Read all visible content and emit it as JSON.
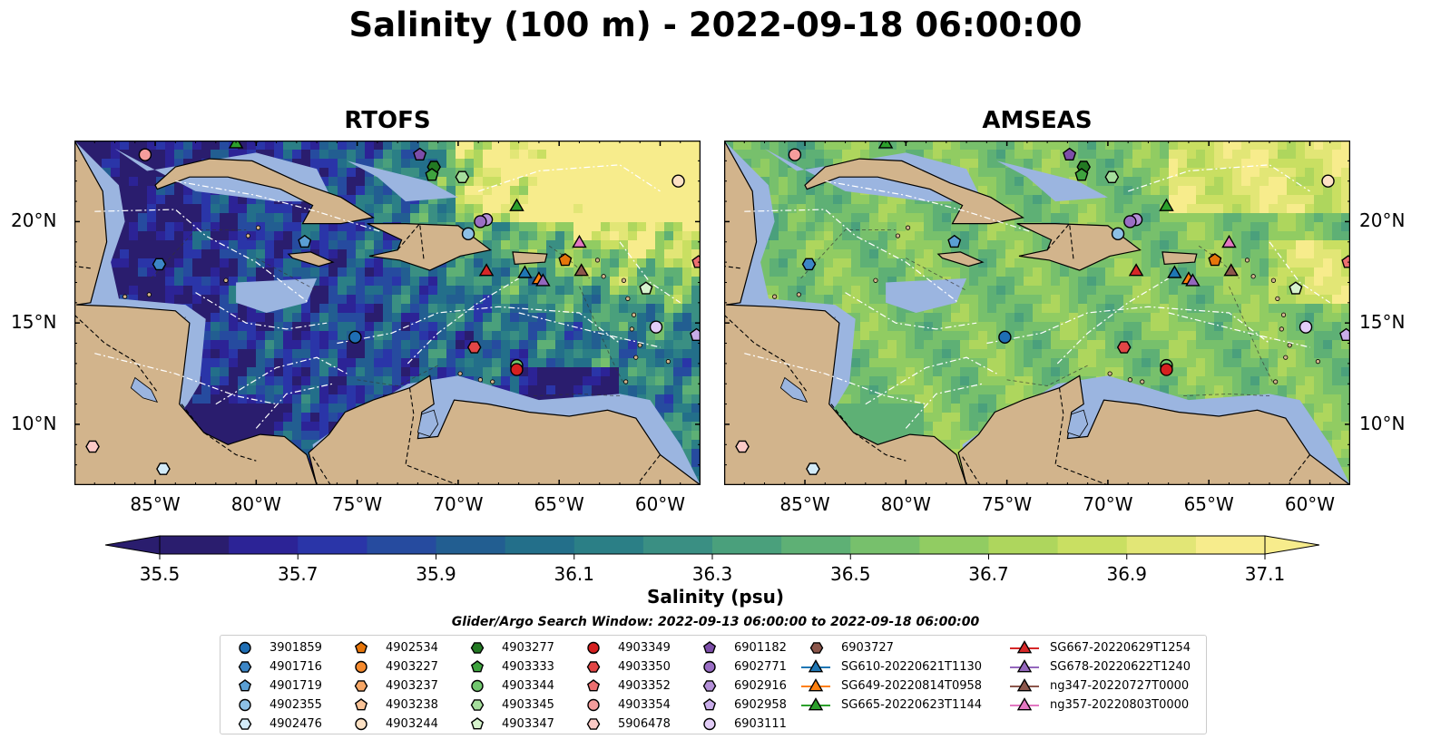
{
  "title": "Salinity (100 m) - 2022-09-18 06:00:00",
  "panels": [
    {
      "title": "RTOFS",
      "model": "rtofs"
    },
    {
      "title": "AMSEAS",
      "model": "amseas"
    }
  ],
  "lon_ticks": [
    "85°W",
    "80°W",
    "75°W",
    "70°W",
    "65°W",
    "60°W"
  ],
  "lat_ticks": [
    "20°N",
    "15°N",
    "10°N"
  ],
  "colorbar": {
    "label": "Salinity (psu)",
    "min": 35.5,
    "max": 37.1,
    "step": 0.1,
    "tick_labels": [
      "35.5",
      "35.7",
      "35.9",
      "36.1",
      "36.3",
      "36.5",
      "36.7",
      "36.9",
      "37.1"
    ],
    "colors": [
      "#2a1d6e",
      "#2c2396",
      "#2a35a8",
      "#264b9f",
      "#225e91",
      "#236f8a",
      "#2b7f86",
      "#3a8f83",
      "#4aa07c",
      "#5eb075",
      "#77c06c",
      "#91cc62",
      "#aed65d",
      "#c9df62",
      "#e2e676",
      "#f7ec8c"
    ],
    "extend": "both"
  },
  "legend": {
    "title": "Glider/Argo Search Window: 2022-09-13 06:00:00 to 2022-09-18 06:00:00",
    "columns": [
      [
        {
          "label": "3901859",
          "marker": "circle",
          "color": "#1f6eb4"
        },
        {
          "label": "4901716",
          "marker": "hexagon",
          "color": "#3c86c6"
        },
        {
          "label": "4901719",
          "marker": "pentagon",
          "color": "#5a9fd4"
        },
        {
          "label": "4902355",
          "marker": "circle",
          "color": "#8dc0e6"
        },
        {
          "label": "4902476",
          "marker": "hexagon",
          "color": "#d3ebf8"
        }
      ],
      [
        {
          "label": "4902534",
          "marker": "pentagon",
          "color": "#e6750a"
        },
        {
          "label": "4903227",
          "marker": "circle",
          "color": "#f58a2e"
        },
        {
          "label": "4903237",
          "marker": "hexagon",
          "color": "#f7a766"
        },
        {
          "label": "4903238",
          "marker": "pentagon",
          "color": "#f9c397"
        },
        {
          "label": "4903244",
          "marker": "circle",
          "color": "#fde1c4"
        }
      ],
      [
        {
          "label": "4903277",
          "marker": "hexagon",
          "color": "#237a23"
        },
        {
          "label": "4903333",
          "marker": "pentagon",
          "color": "#3ea33e"
        },
        {
          "label": "4903344",
          "marker": "circle",
          "color": "#71c76e"
        },
        {
          "label": "4903345",
          "marker": "hexagon",
          "color": "#a5de9c"
        },
        {
          "label": "4903347",
          "marker": "pentagon",
          "color": "#d6f3cd"
        }
      ],
      [
        {
          "label": "4903349",
          "marker": "circle",
          "color": "#d62020"
        },
        {
          "label": "4903350",
          "marker": "hexagon",
          "color": "#e24646"
        },
        {
          "label": "4903352",
          "marker": "pentagon",
          "color": "#ec6f70"
        },
        {
          "label": "4903354",
          "marker": "circle",
          "color": "#f49d9c"
        },
        {
          "label": "5906478",
          "marker": "hexagon",
          "color": "#fbcac6"
        }
      ],
      [
        {
          "label": "6901182",
          "marker": "pentagon",
          "color": "#7d4ea9"
        },
        {
          "label": "6902771",
          "marker": "circle",
          "color": "#9a6ec4"
        },
        {
          "label": "6902916",
          "marker": "hexagon",
          "color": "#b38fd7"
        },
        {
          "label": "6902958",
          "marker": "pentagon",
          "color": "#c9adea"
        },
        {
          "label": "6903111",
          "marker": "circle",
          "color": "#e2cdf7"
        }
      ],
      [
        {
          "label": "6903727",
          "marker": "hexagon",
          "color": "#8c564b"
        },
        {
          "label": "SG610-20220621T1130",
          "marker": "triangle-line",
          "color": "#1f77b4"
        },
        {
          "label": "SG649-20220814T0958",
          "marker": "triangle-line",
          "color": "#ff7f0e"
        },
        {
          "label": "SG665-20220623T1144",
          "marker": "triangle-line",
          "color": "#2ca02c"
        }
      ],
      [
        {
          "label": "SG667-20220629T1254",
          "marker": "triangle-line",
          "color": "#d62728"
        },
        {
          "label": "SG678-20220622T1240",
          "marker": "triangle-line",
          "color": "#9467bd"
        },
        {
          "label": "ng347-20220727T0000",
          "marker": "triangle-line",
          "color": "#8c564b"
        },
        {
          "label": "ng357-20220803T0000",
          "marker": "triangle-line",
          "color": "#e377c2"
        }
      ]
    ]
  },
  "map_colors": {
    "land": "#d2b48c",
    "shelf": "#9bb5e0"
  }
}
